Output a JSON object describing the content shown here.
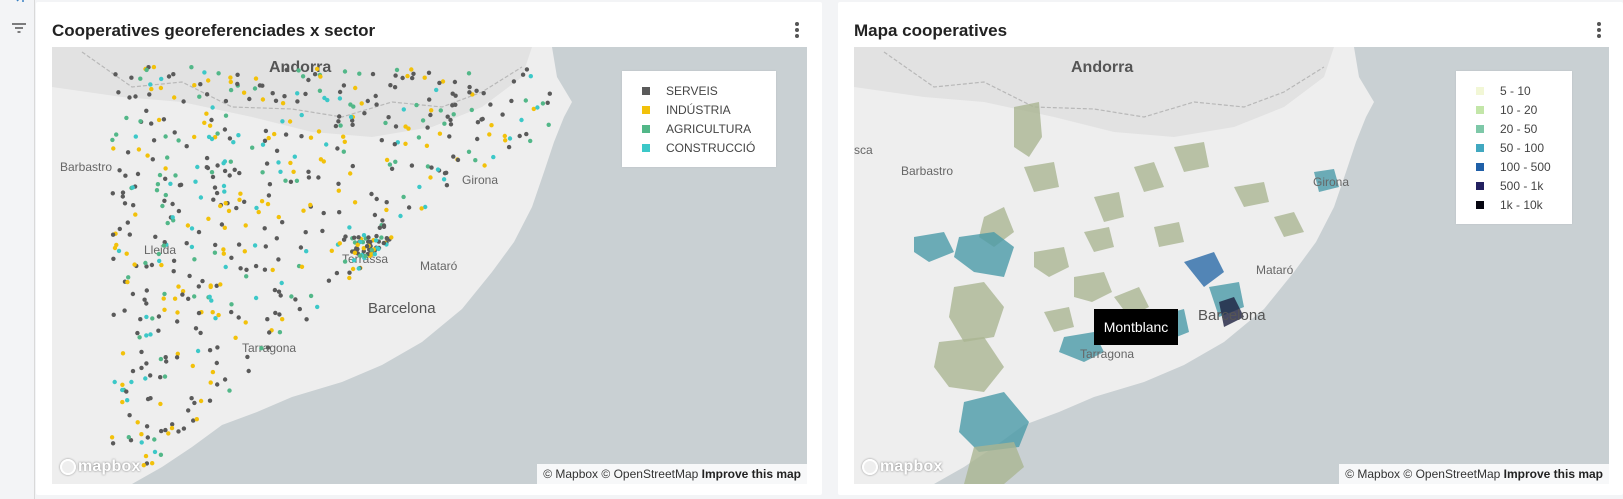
{
  "sidebar": {
    "expand_icon": "collapse-arrow-icon",
    "filter_icon": "filter-icon"
  },
  "cards": [
    {
      "title": "Cooperatives georeferenciades x sector",
      "menu_icon": "kebab-menu-icon",
      "map": {
        "places": {
          "andorra": "Andorra",
          "barbastro": "Barbastro",
          "lleida": "Lleida",
          "girona": "Girona",
          "mataro": "Mataró",
          "terrassa": "Terrassa",
          "barcelona": "Barcelona",
          "tarragona": "Tarragona"
        },
        "legend": [
          {
            "label": "SERVEIS",
            "color": "#5a5a5a"
          },
          {
            "label": "INDÚSTRIA",
            "color": "#f2c10a"
          },
          {
            "label": "AGRICULTURA",
            "color": "#52b788"
          },
          {
            "label": "CONSTRUCCIÓ",
            "color": "#3cc8c8"
          }
        ],
        "logo": "mapbox",
        "attribution": {
          "mapbox": "© Mapbox",
          "osm": "© OpenStreetMap",
          "improve": "Improve this map"
        }
      }
    },
    {
      "title": "Mapa cooperatives",
      "menu_icon": "kebab-menu-icon",
      "map": {
        "places": {
          "andorra": "Andorra",
          "barbastro": "Barbastro",
          "huesca": "sca",
          "girona": "Girona",
          "mataro": "Mataró",
          "barcelona": "Barcelona",
          "tarragona": "Tarragona"
        },
        "legend": [
          {
            "label": "5 - 10",
            "color": "#f2f7d6"
          },
          {
            "label": "10 - 20",
            "color": "#c3e6a8"
          },
          {
            "label": "20 - 50",
            "color": "#7ec8a8"
          },
          {
            "label": "50 - 100",
            "color": "#41a8c0"
          },
          {
            "label": "100 - 500",
            "color": "#2060a8"
          },
          {
            "label": "500 - 1k",
            "color": "#232060"
          },
          {
            "label": "1k - 10k",
            "color": "#050510"
          }
        ],
        "tooltip": "Montblanc",
        "logo": "mapbox",
        "attribution": {
          "mapbox": "© Mapbox",
          "osm": "© OpenStreetMap",
          "improve": "Improve this map"
        }
      }
    }
  ]
}
